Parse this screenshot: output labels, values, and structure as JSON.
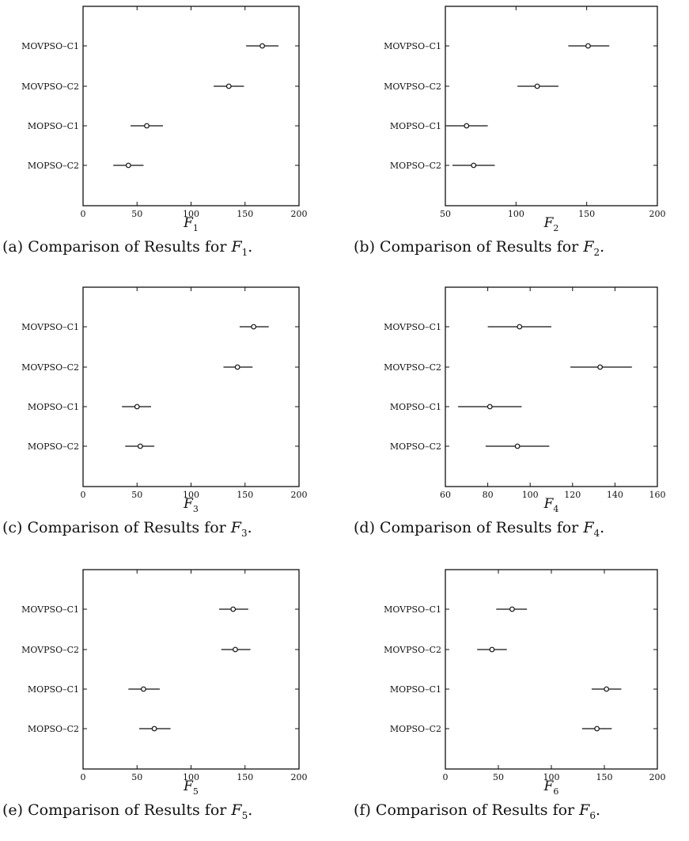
{
  "panels": [
    {
      "caption": {
        "label": "(a)",
        "text": "Comparison of Results for",
        "var": "F",
        "sub": "1"
      },
      "chart_data": {
        "type": "scatter",
        "xlabel": {
          "var": "F",
          "sub": "1"
        },
        "xlim": [
          0,
          200
        ],
        "xticks": [
          0,
          50,
          100,
          150,
          200
        ],
        "categories": [
          "MOVPSO–C1",
          "MOVPSO–C2",
          "MOPSO–C1",
          "MOPSO–C2"
        ],
        "means": [
          166,
          135,
          59,
          42
        ],
        "lower": [
          151,
          121,
          44,
          28
        ],
        "upper": [
          181,
          149,
          74,
          56
        ]
      }
    },
    {
      "caption": {
        "label": "(b)",
        "text": "Comparison of Results for",
        "var": "F",
        "sub": "2"
      },
      "chart_data": {
        "type": "scatter",
        "xlabel": {
          "var": "F",
          "sub": "2"
        },
        "xlim": [
          50,
          200
        ],
        "xticks": [
          50,
          100,
          150,
          200
        ],
        "categories": [
          "MOVPSO–C1",
          "MOVPSO–C2",
          "MOPSO–C1",
          "MOPSO–C2"
        ],
        "means": [
          151,
          115,
          65,
          70
        ],
        "lower": [
          137,
          101,
          51,
          55
        ],
        "upper": [
          166,
          130,
          80,
          85
        ]
      }
    },
    {
      "caption": {
        "label": "(c)",
        "text": "Comparison of Results for",
        "var": "F",
        "sub": "3"
      },
      "chart_data": {
        "type": "scatter",
        "xlabel": {
          "var": "F",
          "sub": "3"
        },
        "xlim": [
          0,
          200
        ],
        "xticks": [
          0,
          50,
          100,
          150,
          200
        ],
        "categories": [
          "MOVPSO–C1",
          "MOVPSO–C2",
          "MOPSO–C1",
          "MOPSO–C2"
        ],
        "means": [
          158,
          143,
          50,
          53
        ],
        "lower": [
          145,
          130,
          36,
          39
        ],
        "upper": [
          172,
          157,
          63,
          66
        ]
      }
    },
    {
      "caption": {
        "label": "(d)",
        "text": "Comparison of Results for",
        "var": "F",
        "sub": "4"
      },
      "chart_data": {
        "type": "scatter",
        "xlabel": {
          "var": "F",
          "sub": "4"
        },
        "xlim": [
          60,
          160
        ],
        "xticks": [
          60,
          80,
          100,
          120,
          140,
          160
        ],
        "categories": [
          "MOVPSO–C1",
          "MOVPSO–C2",
          "MOPSO–C1",
          "MOPSO–C2"
        ],
        "means": [
          95,
          133,
          81,
          94
        ],
        "lower": [
          80,
          119,
          66,
          79
        ],
        "upper": [
          110,
          148,
          96,
          109
        ]
      }
    },
    {
      "caption": {
        "label": "(e)",
        "text": "Comparison of Results for",
        "var": "F",
        "sub": "5"
      },
      "chart_data": {
        "type": "scatter",
        "xlabel": {
          "var": "F",
          "sub": "5"
        },
        "xlim": [
          0,
          200
        ],
        "xticks": [
          0,
          50,
          100,
          150,
          200
        ],
        "categories": [
          "MOVPSO–C1",
          "MOVPSO–C2",
          "MOPSO–C1",
          "MOPSO–C2"
        ],
        "means": [
          139,
          141,
          56,
          66
        ],
        "lower": [
          126,
          128,
          42,
          52
        ],
        "upper": [
          153,
          155,
          71,
          81
        ]
      }
    },
    {
      "caption": {
        "label": "(f)",
        "text": "Comparison of Results for",
        "var": "F",
        "sub": "6"
      },
      "chart_data": {
        "type": "scatter",
        "xlabel": {
          "var": "F",
          "sub": "6"
        },
        "xlim": [
          0,
          200
        ],
        "xticks": [
          0,
          50,
          100,
          150,
          200
        ],
        "categories": [
          "MOVPSO–C1",
          "MOVPSO–C2",
          "MOPSO–C1",
          "MOPSO–C2"
        ],
        "means": [
          63,
          44,
          152,
          143
        ],
        "lower": [
          48,
          30,
          138,
          129
        ],
        "upper": [
          77,
          58,
          166,
          157
        ]
      }
    }
  ]
}
